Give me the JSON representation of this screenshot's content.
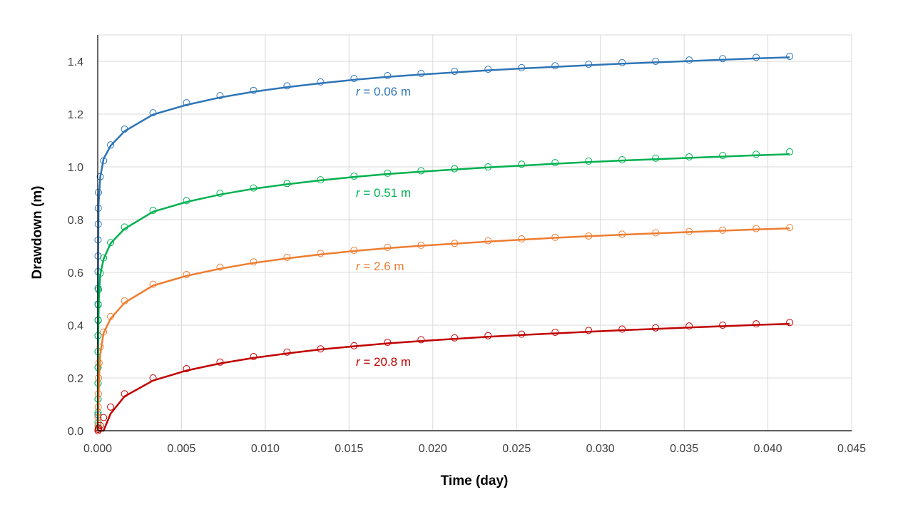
{
  "chart_data": {
    "type": "scatter",
    "xlabel": "Time (day)",
    "ylabel": "Drawdown (m)",
    "xlim": [
      0,
      0.045
    ],
    "ylim": [
      0,
      1.5
    ],
    "xticks": [
      "0.000",
      "0.005",
      "0.010",
      "0.015",
      "0.020",
      "0.025",
      "0.030",
      "0.035",
      "0.040",
      "0.045"
    ],
    "yticks": [
      "0.0",
      "0.2",
      "0.4",
      "0.6",
      "0.8",
      "1.0",
      "1.2",
      "1.4"
    ],
    "grid": true,
    "legend": "none",
    "series": [
      {
        "name": "r = 0.06 m",
        "label_var": "r",
        "label_rest": " = 0.06 m",
        "color": "#2E75B6",
        "observed": [
          [
            2e-05,
            0.06
          ],
          [
            2e-05,
            0.12
          ],
          [
            2e-05,
            0.18
          ],
          [
            2e-05,
            0.24
          ],
          [
            2e-05,
            0.3
          ],
          [
            2e-05,
            0.36
          ],
          [
            2e-05,
            0.42
          ],
          [
            2e-05,
            0.48
          ],
          [
            2e-05,
            0.54
          ],
          [
            2e-05,
            0.603
          ],
          [
            2e-05,
            0.662
          ],
          [
            2e-05,
            0.723
          ],
          [
            3e-05,
            0.783
          ],
          [
            3e-05,
            0.843
          ],
          [
            4e-05,
            0.903
          ],
          [
            0.00015,
            0.963
          ],
          [
            0.00035,
            1.023
          ],
          [
            0.00077,
            1.083
          ],
          [
            0.0016,
            1.143
          ],
          [
            0.0033,
            1.205
          ],
          [
            0.0053,
            1.243
          ],
          [
            0.0073,
            1.27
          ],
          [
            0.0093,
            1.29
          ],
          [
            0.0113,
            1.307
          ],
          [
            0.0133,
            1.322
          ],
          [
            0.0153,
            1.335
          ],
          [
            0.0173,
            1.346
          ],
          [
            0.0193,
            1.354
          ],
          [
            0.0213,
            1.362
          ],
          [
            0.0233,
            1.37
          ],
          [
            0.0253,
            1.376
          ],
          [
            0.0273,
            1.383
          ],
          [
            0.0293,
            1.389
          ],
          [
            0.0313,
            1.395
          ],
          [
            0.0333,
            1.4
          ],
          [
            0.0353,
            1.405
          ],
          [
            0.0373,
            1.41
          ],
          [
            0.0393,
            1.415
          ],
          [
            0.0413,
            1.419
          ]
        ],
        "model": [
          [
            0,
            0.0
          ],
          [
            2e-05,
            0.6
          ],
          [
            5e-05,
            0.86
          ],
          [
            0.00015,
            0.96
          ],
          [
            0.00035,
            1.03
          ],
          [
            0.00077,
            1.08
          ],
          [
            0.0016,
            1.135
          ],
          [
            0.0033,
            1.198
          ],
          [
            0.0053,
            1.235
          ],
          [
            0.0073,
            1.263
          ],
          [
            0.0093,
            1.285
          ],
          [
            0.0113,
            1.302
          ],
          [
            0.0133,
            1.317
          ],
          [
            0.0153,
            1.33
          ],
          [
            0.0173,
            1.341
          ],
          [
            0.0193,
            1.35
          ],
          [
            0.0213,
            1.358
          ],
          [
            0.0233,
            1.366
          ],
          [
            0.0253,
            1.373
          ],
          [
            0.0273,
            1.379
          ],
          [
            0.0293,
            1.385
          ],
          [
            0.0313,
            1.391
          ],
          [
            0.0333,
            1.396
          ],
          [
            0.0353,
            1.401
          ],
          [
            0.0373,
            1.406
          ],
          [
            0.0393,
            1.411
          ],
          [
            0.0413,
            1.415
          ]
        ]
      },
      {
        "name": "r = 0.51 m",
        "label_var": "r",
        "label_rest": " = 0.51 m",
        "color": "#00B050",
        "observed": [
          [
            2e-05,
            0.03
          ],
          [
            2e-05,
            0.07
          ],
          [
            2e-05,
            0.12
          ],
          [
            2e-05,
            0.18
          ],
          [
            2e-05,
            0.24
          ],
          [
            2e-05,
            0.3
          ],
          [
            2e-05,
            0.36
          ],
          [
            3e-05,
            0.418
          ],
          [
            3e-05,
            0.477
          ],
          [
            5e-05,
            0.535
          ],
          [
            0.00015,
            0.597
          ],
          [
            0.00035,
            0.655
          ],
          [
            0.00077,
            0.713
          ],
          [
            0.0016,
            0.772
          ],
          [
            0.0033,
            0.835
          ],
          [
            0.0053,
            0.872
          ],
          [
            0.0073,
            0.9
          ],
          [
            0.0093,
            0.92
          ],
          [
            0.0113,
            0.937
          ],
          [
            0.0133,
            0.951
          ],
          [
            0.0153,
            0.965
          ],
          [
            0.0173,
            0.976
          ],
          [
            0.0193,
            0.985
          ],
          [
            0.0213,
            0.993
          ],
          [
            0.0233,
            1.0
          ],
          [
            0.0253,
            1.01
          ],
          [
            0.0273,
            1.016
          ],
          [
            0.0293,
            1.022
          ],
          [
            0.0313,
            1.027
          ],
          [
            0.0333,
            1.033
          ],
          [
            0.0353,
            1.038
          ],
          [
            0.0373,
            1.043
          ],
          [
            0.0393,
            1.048
          ],
          [
            0.0413,
            1.057
          ]
        ],
        "model": [
          [
            0,
            0.0
          ],
          [
            3e-05,
            0.35
          ],
          [
            7e-05,
            0.5
          ],
          [
            0.00015,
            0.59
          ],
          [
            0.00035,
            0.65
          ],
          [
            0.00077,
            0.71
          ],
          [
            0.0016,
            0.765
          ],
          [
            0.0033,
            0.83
          ],
          [
            0.0053,
            0.867
          ],
          [
            0.0073,
            0.895
          ],
          [
            0.0093,
            0.917
          ],
          [
            0.0113,
            0.934
          ],
          [
            0.0133,
            0.949
          ],
          [
            0.0153,
            0.962
          ],
          [
            0.0173,
            0.973
          ],
          [
            0.0193,
            0.982
          ],
          [
            0.0213,
            0.99
          ],
          [
            0.0233,
            0.998
          ],
          [
            0.0253,
            1.005
          ],
          [
            0.0273,
            1.012
          ],
          [
            0.0293,
            1.018
          ],
          [
            0.0313,
            1.024
          ],
          [
            0.0333,
            1.029
          ],
          [
            0.0353,
            1.034
          ],
          [
            0.0373,
            1.039
          ],
          [
            0.0393,
            1.044
          ],
          [
            0.0413,
            1.048
          ]
        ]
      },
      {
        "name": "r = 2.6 m",
        "label_var": "r",
        "label_rest": " = 2.6 m",
        "color": "#ED7D31",
        "observed": [
          [
            2e-05,
            0.005
          ],
          [
            2e-05,
            0.02
          ],
          [
            2e-05,
            0.05
          ],
          [
            3e-05,
            0.09
          ],
          [
            4e-05,
            0.14
          ],
          [
            5e-05,
            0.2
          ],
          [
            8e-05,
            0.257
          ],
          [
            0.00015,
            0.317
          ],
          [
            0.00035,
            0.374
          ],
          [
            0.00077,
            0.433
          ],
          [
            0.0016,
            0.492
          ],
          [
            0.0033,
            0.555
          ],
          [
            0.0053,
            0.592
          ],
          [
            0.0073,
            0.62
          ],
          [
            0.0093,
            0.64
          ],
          [
            0.0113,
            0.657
          ],
          [
            0.0133,
            0.672
          ],
          [
            0.0153,
            0.684
          ],
          [
            0.0173,
            0.695
          ],
          [
            0.0193,
            0.703
          ],
          [
            0.0213,
            0.71
          ],
          [
            0.0233,
            0.72
          ],
          [
            0.0253,
            0.727
          ],
          [
            0.0273,
            0.733
          ],
          [
            0.0293,
            0.738
          ],
          [
            0.0313,
            0.745
          ],
          [
            0.0333,
            0.75
          ],
          [
            0.0353,
            0.755
          ],
          [
            0.0373,
            0.76
          ],
          [
            0.0393,
            0.766
          ],
          [
            0.0413,
            0.77
          ]
        ],
        "model": [
          [
            0,
            0.0
          ],
          [
            3e-05,
            0.05
          ],
          [
            7e-05,
            0.18
          ],
          [
            0.00015,
            0.29
          ],
          [
            0.00035,
            0.37
          ],
          [
            0.00077,
            0.425
          ],
          [
            0.0016,
            0.485
          ],
          [
            0.0033,
            0.55
          ],
          [
            0.0053,
            0.587
          ],
          [
            0.0073,
            0.614
          ],
          [
            0.0093,
            0.636
          ],
          [
            0.0113,
            0.653
          ],
          [
            0.0133,
            0.668
          ],
          [
            0.0153,
            0.681
          ],
          [
            0.0173,
            0.692
          ],
          [
            0.0193,
            0.701
          ],
          [
            0.0213,
            0.709
          ],
          [
            0.0233,
            0.717
          ],
          [
            0.0253,
            0.724
          ],
          [
            0.0273,
            0.731
          ],
          [
            0.0293,
            0.737
          ],
          [
            0.0313,
            0.743
          ],
          [
            0.0333,
            0.748
          ],
          [
            0.0353,
            0.753
          ],
          [
            0.0373,
            0.758
          ],
          [
            0.0393,
            0.763
          ],
          [
            0.0413,
            0.767
          ]
        ]
      },
      {
        "name": "r = 20.8 m",
        "label_var": "r",
        "label_rest": " = 20.8 m",
        "color": "#C00000",
        "observed": [
          [
            2e-05,
            0.0
          ],
          [
            3e-05,
            0.005
          ],
          [
            5e-05,
            0.01
          ],
          [
            0.00015,
            0.02
          ],
          [
            0.00035,
            0.05
          ],
          [
            0.00077,
            0.09
          ],
          [
            0.0016,
            0.14
          ],
          [
            0.0033,
            0.2
          ],
          [
            0.0053,
            0.235
          ],
          [
            0.0073,
            0.26
          ],
          [
            0.0093,
            0.281
          ],
          [
            0.0113,
            0.298
          ],
          [
            0.0133,
            0.31
          ],
          [
            0.0153,
            0.322
          ],
          [
            0.0173,
            0.335
          ],
          [
            0.0193,
            0.345
          ],
          [
            0.0213,
            0.352
          ],
          [
            0.0233,
            0.36
          ],
          [
            0.0253,
            0.366
          ],
          [
            0.0273,
            0.373
          ],
          [
            0.0293,
            0.38
          ],
          [
            0.0313,
            0.385
          ],
          [
            0.0333,
            0.39
          ],
          [
            0.0353,
            0.397
          ],
          [
            0.0373,
            0.4
          ],
          [
            0.0393,
            0.405
          ],
          [
            0.0413,
            0.41
          ]
        ],
        "model": [
          [
            0,
            0.0
          ],
          [
            0.00035,
            0.0
          ],
          [
            0.00077,
            0.065
          ],
          [
            0.0016,
            0.13
          ],
          [
            0.0033,
            0.19
          ],
          [
            0.0053,
            0.228
          ],
          [
            0.0073,
            0.255
          ],
          [
            0.0093,
            0.276
          ],
          [
            0.0113,
            0.293
          ],
          [
            0.0133,
            0.308
          ],
          [
            0.0153,
            0.32
          ],
          [
            0.0173,
            0.331
          ],
          [
            0.0193,
            0.34
          ],
          [
            0.0213,
            0.348
          ],
          [
            0.0233,
            0.356
          ],
          [
            0.0253,
            0.363
          ],
          [
            0.0273,
            0.369
          ],
          [
            0.0293,
            0.375
          ],
          [
            0.0313,
            0.381
          ],
          [
            0.0333,
            0.386
          ],
          [
            0.0353,
            0.391
          ],
          [
            0.0373,
            0.396
          ],
          [
            0.0393,
            0.401
          ],
          [
            0.0413,
            0.405
          ]
        ]
      }
    ]
  }
}
